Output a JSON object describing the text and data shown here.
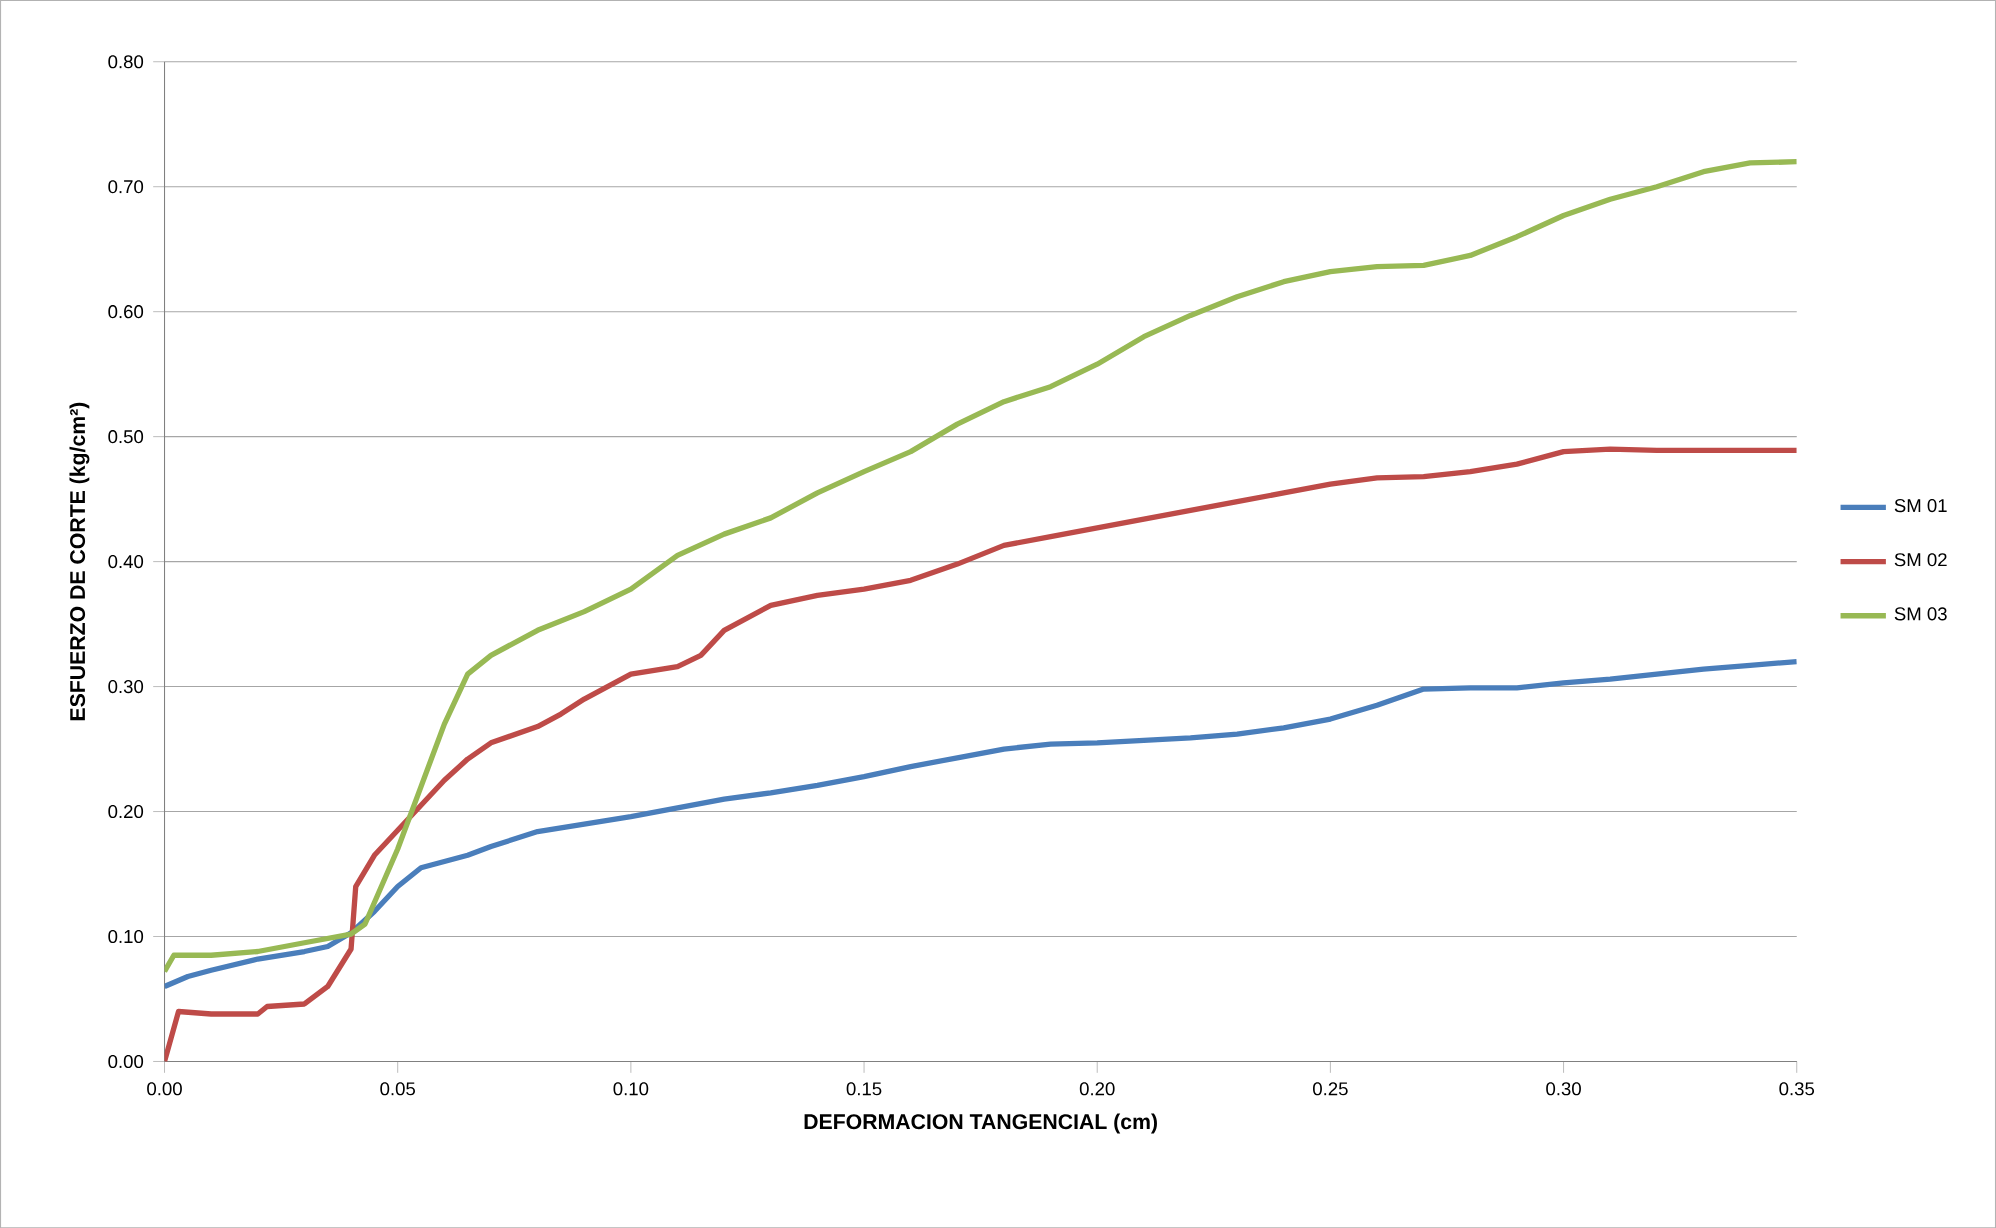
{
  "chart_data": {
    "type": "line",
    "xlabel": "DEFORMACION TANGENCIAL (cm)",
    "ylabel": "ESFUERZO DE CORTE (kg/cm²)",
    "xlim": [
      0,
      0.35
    ],
    "ylim": [
      0,
      0.8
    ],
    "xticks": [
      {
        "value": 0,
        "label": "0.00"
      },
      {
        "value": 0.05,
        "label": "0.05"
      },
      {
        "value": 0.1,
        "label": "0.10"
      },
      {
        "value": 0.15,
        "label": "0.15"
      },
      {
        "value": 0.2,
        "label": "0.20"
      },
      {
        "value": 0.25,
        "label": "0.25"
      },
      {
        "value": 0.3,
        "label": "0.30"
      },
      {
        "value": 0.35,
        "label": "0.35"
      }
    ],
    "yticks": [
      {
        "value": 0,
        "label": "0.00"
      },
      {
        "value": 0.1,
        "label": "0.10"
      },
      {
        "value": 0.2,
        "label": "0.20"
      },
      {
        "value": 0.3,
        "label": "0.30"
      },
      {
        "value": 0.4,
        "label": "0.40"
      },
      {
        "value": 0.5,
        "label": "0.50"
      },
      {
        "value": 0.6,
        "label": "0.60"
      },
      {
        "value": 0.7,
        "label": "0.70"
      },
      {
        "value": 0.8,
        "label": "0.80"
      }
    ],
    "grid": "y",
    "legend": "right",
    "marker": "none",
    "line_style": "solid",
    "series": [
      {
        "name": "SM  01",
        "color": "#4a7ebb",
        "x": [
          0,
          0.005,
          0.01,
          0.02,
          0.03,
          0.035,
          0.04,
          0.045,
          0.05,
          0.055,
          0.06,
          0.065,
          0.07,
          0.08,
          0.09,
          0.1,
          0.11,
          0.12,
          0.13,
          0.14,
          0.15,
          0.16,
          0.17,
          0.18,
          0.19,
          0.2,
          0.21,
          0.22,
          0.23,
          0.24,
          0.25,
          0.26,
          0.27,
          0.28,
          0.29,
          0.3,
          0.31,
          0.32,
          0.33,
          0.34,
          0.35
        ],
        "values": [
          0.06,
          0.068,
          0.073,
          0.082,
          0.088,
          0.092,
          0.103,
          0.12,
          0.14,
          0.155,
          0.16,
          0.165,
          0.172,
          0.184,
          0.19,
          0.196,
          0.203,
          0.21,
          0.215,
          0.221,
          0.228,
          0.236,
          0.243,
          0.25,
          0.254,
          0.255,
          0.257,
          0.259,
          0.262,
          0.267,
          0.274,
          0.285,
          0.298,
          0.299,
          0.299,
          0.303,
          0.306,
          0.31,
          0.314,
          0.317,
          0.32
        ]
      },
      {
        "name": "SM  02",
        "color": "#be4b48",
        "x": [
          0,
          0.003,
          0.01,
          0.02,
          0.022,
          0.03,
          0.035,
          0.04,
          0.041,
          0.045,
          0.05,
          0.055,
          0.06,
          0.065,
          0.07,
          0.08,
          0.085,
          0.09,
          0.1,
          0.11,
          0.115,
          0.12,
          0.13,
          0.14,
          0.15,
          0.16,
          0.17,
          0.18,
          0.19,
          0.2,
          0.21,
          0.22,
          0.23,
          0.24,
          0.25,
          0.26,
          0.27,
          0.28,
          0.29,
          0.3,
          0.31,
          0.32,
          0.35
        ],
        "values": [
          0,
          0.04,
          0.038,
          0.038,
          0.044,
          0.046,
          0.06,
          0.09,
          0.14,
          0.165,
          0.185,
          0.205,
          0.225,
          0.242,
          0.255,
          0.268,
          0.278,
          0.29,
          0.31,
          0.316,
          0.325,
          0.345,
          0.365,
          0.373,
          0.378,
          0.385,
          0.398,
          0.413,
          0.42,
          0.427,
          0.434,
          0.441,
          0.448,
          0.455,
          0.462,
          0.467,
          0.468,
          0.472,
          0.478,
          0.488,
          0.49,
          0.489,
          0.489
        ]
      },
      {
        "name": "SM 03",
        "color": "#98b954",
        "x": [
          0,
          0.002,
          0.01,
          0.02,
          0.03,
          0.04,
          0.043,
          0.05,
          0.055,
          0.06,
          0.065,
          0.07,
          0.08,
          0.09,
          0.1,
          0.11,
          0.12,
          0.13,
          0.14,
          0.15,
          0.16,
          0.17,
          0.18,
          0.19,
          0.2,
          0.21,
          0.22,
          0.23,
          0.24,
          0.25,
          0.26,
          0.27,
          0.28,
          0.29,
          0.3,
          0.31,
          0.32,
          0.33,
          0.34,
          0.35
        ],
        "values": [
          0.072,
          0.085,
          0.085,
          0.088,
          0.095,
          0.102,
          0.11,
          0.17,
          0.22,
          0.27,
          0.31,
          0.325,
          0.345,
          0.36,
          0.378,
          0.405,
          0.422,
          0.435,
          0.455,
          0.472,
          0.488,
          0.51,
          0.528,
          0.54,
          0.558,
          0.58,
          0.597,
          0.612,
          0.624,
          0.632,
          0.636,
          0.637,
          0.645,
          0.66,
          0.677,
          0.69,
          0.7,
          0.712,
          0.719,
          0.72
        ]
      }
    ]
  }
}
